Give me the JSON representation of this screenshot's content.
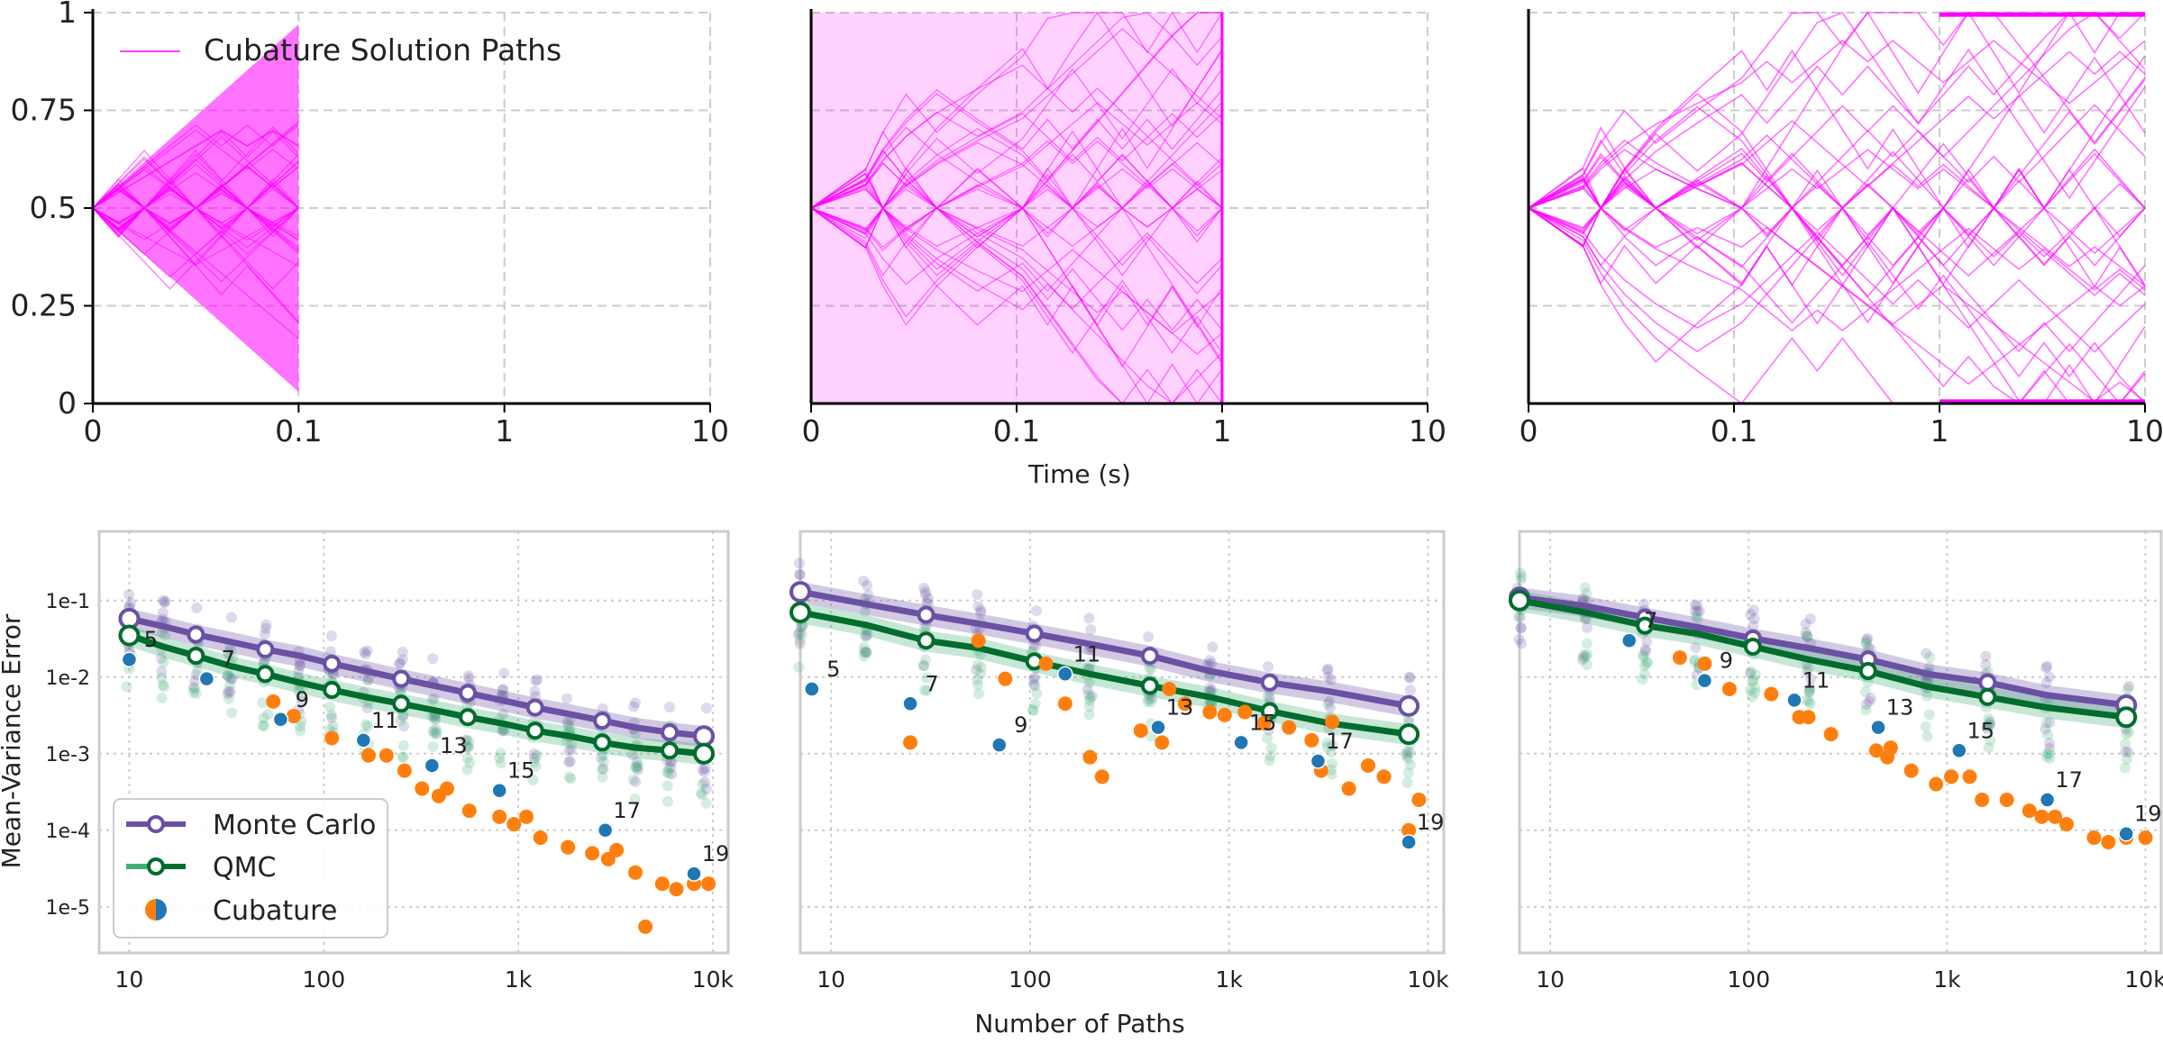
{
  "colors": {
    "paths": "#ff00ff",
    "monte_carlo": "#6a51a3",
    "qmc_light": "#41ae76",
    "qmc_dark": "#006d2c",
    "cubature_orange": "#ff7f0e",
    "cubature_blue": "#1f77b4",
    "grid": "#cccccc"
  },
  "figure": {
    "top_xlabel": "Time (s)",
    "bottom_xlabel": "Number of Paths",
    "bottom_ylabel": "Mean-Variance Error"
  },
  "chart_data": [
    {
      "type": "line",
      "panel": "top-left",
      "description_series": "Cubature Solution Paths",
      "legend_label": "Cubature Solution Paths",
      "legend_position": "top-left",
      "x_scale": "symlog",
      "xticks": [
        0,
        0.1,
        1,
        10
      ],
      "xtick_labels": [
        "0",
        "0.1",
        "1",
        "10"
      ],
      "yticks": [
        0,
        0.25,
        0.5,
        0.75,
        1
      ],
      "ytick_labels": [
        "0",
        "0.25",
        "0.5",
        "0.75",
        "1"
      ],
      "ylim": [
        0,
        1
      ],
      "x_end": 0.1,
      "start_value": 0.5,
      "spread": 0.48,
      "path_count": 40
    },
    {
      "type": "line",
      "panel": "top-middle",
      "x_scale": "symlog",
      "xticks": [
        0,
        0.1,
        1,
        10
      ],
      "xtick_labels": [
        "0",
        "0.1",
        "1",
        "10"
      ],
      "ylim": [
        0,
        1
      ],
      "x_end": 1,
      "start_value": 0.5,
      "path_count": 36,
      "xlabel": "Time (s)"
    },
    {
      "type": "line",
      "panel": "top-right",
      "x_scale": "symlog",
      "xticks": [
        0,
        0.1,
        1,
        10
      ],
      "xtick_labels": [
        "0",
        "0.1",
        "1",
        "10"
      ],
      "ylim": [
        0,
        1
      ],
      "x_end": 10,
      "start_value": 0.5,
      "path_count": 30
    },
    {
      "type": "line",
      "panel": "bottom-left",
      "x_scale": "log",
      "y_scale": "log",
      "xlim": [
        7,
        12000
      ],
      "ylim": [
        2.5e-06,
        0.8
      ],
      "xticks": [
        10,
        100,
        1000,
        10000
      ],
      "xtick_labels": [
        "10",
        "100",
        "1k",
        "10k"
      ],
      "yticks": [
        0.1,
        0.01,
        0.001,
        0.0001,
        1e-05
      ],
      "ytick_labels": [
        "1e-1",
        "1e-2",
        "1e-3",
        "1e-4",
        "1e-5"
      ],
      "legend": [
        "Monte Carlo",
        "QMC",
        "Cubature"
      ],
      "legend_position": "bottom-left",
      "x": [
        10,
        15,
        22,
        33,
        50,
        75,
        110,
        165,
        250,
        370,
        550,
        820,
        1220,
        1820,
        2700,
        4000,
        6000,
        9000
      ],
      "series": [
        {
          "name": "Monte Carlo",
          "values": [
            0.058,
            0.046,
            0.036,
            0.029,
            0.023,
            0.019,
            0.015,
            0.012,
            0.0095,
            0.0077,
            0.0062,
            0.005,
            0.004,
            0.0033,
            0.0027,
            0.0022,
            0.0019,
            0.0017
          ]
        },
        {
          "name": "QMC",
          "values": [
            0.035,
            0.025,
            0.019,
            0.014,
            0.011,
            0.0085,
            0.0068,
            0.0055,
            0.0045,
            0.0037,
            0.003,
            0.0025,
            0.002,
            0.0017,
            0.0014,
            0.0012,
            0.0011,
            0.001
          ]
        }
      ],
      "cubature": {
        "labels": [
          "5",
          "7",
          "9",
          "11",
          "13",
          "15",
          "17",
          "19"
        ],
        "blue_points": [
          [
            10,
            0.017
          ],
          [
            25,
            0.0095
          ],
          [
            60,
            0.0028
          ],
          [
            160,
            0.0015
          ],
          [
            360,
            0.0007
          ],
          [
            800,
            0.00033
          ],
          [
            2800,
            0.0001
          ],
          [
            8000,
            2.7e-05
          ]
        ],
        "orange_points": [
          [
            55,
            0.0048
          ],
          [
            70,
            0.0031
          ],
          [
            110,
            0.0016
          ],
          [
            170,
            0.00095
          ],
          [
            210,
            0.00095
          ],
          [
            260,
            0.0006
          ],
          [
            320,
            0.00035
          ],
          [
            390,
            0.00028
          ],
          [
            430,
            0.00035
          ],
          [
            560,
            0.00018
          ],
          [
            800,
            0.00015
          ],
          [
            950,
            0.00012
          ],
          [
            1100,
            0.00015
          ],
          [
            1300,
            8e-05
          ],
          [
            1800,
            6e-05
          ],
          [
            2400,
            5e-05
          ],
          [
            2900,
            4.2e-05
          ],
          [
            3200,
            5.5e-05
          ],
          [
            4000,
            2.8e-05
          ],
          [
            4500,
            5.5e-06
          ],
          [
            5500,
            2e-05
          ],
          [
            6500,
            1.7e-05
          ],
          [
            8000,
            2e-05
          ],
          [
            9500,
            2e-05
          ]
        ]
      }
    },
    {
      "type": "line",
      "panel": "bottom-middle",
      "x_scale": "log",
      "y_scale": "log",
      "xlim": [
        7,
        12000
      ],
      "ylim": [
        2.5e-06,
        0.8
      ],
      "xticks": [
        10,
        100,
        1000,
        10000
      ],
      "xtick_labels": [
        "10",
        "100",
        "1k",
        "10k"
      ],
      "x": [
        7,
        15,
        30,
        55,
        105,
        200,
        400,
        800,
        1600,
        3200,
        8000
      ],
      "series": [
        {
          "name": "Monte Carlo",
          "values": [
            0.13,
            0.09,
            0.065,
            0.05,
            0.037,
            0.027,
            0.019,
            0.012,
            0.0085,
            0.0065,
            0.0042
          ]
        },
        {
          "name": "QMC",
          "values": [
            0.07,
            0.048,
            0.03,
            0.024,
            0.016,
            0.011,
            0.0077,
            0.0055,
            0.0036,
            0.0025,
            0.0018
          ]
        }
      ],
      "cubature": {
        "labels": [
          "5",
          "7",
          "9",
          "11",
          "13",
          "15",
          "17",
          "19"
        ],
        "blue_points": [
          [
            8,
            0.007
          ],
          [
            25,
            0.0045
          ],
          [
            70,
            0.0013
          ],
          [
            150,
            0.011
          ],
          [
            440,
            0.0022
          ],
          [
            1150,
            0.0014
          ],
          [
            2800,
            0.0008
          ],
          [
            8000,
            7e-05
          ]
        ],
        "orange_points": [
          [
            25,
            0.0014
          ],
          [
            55,
            0.03
          ],
          [
            75,
            0.0095
          ],
          [
            120,
            0.015
          ],
          [
            150,
            0.0045
          ],
          [
            200,
            0.0009
          ],
          [
            230,
            0.0005
          ],
          [
            360,
            0.002
          ],
          [
            460,
            0.0014
          ],
          [
            500,
            0.007
          ],
          [
            600,
            0.0045
          ],
          [
            800,
            0.0035
          ],
          [
            950,
            0.0032
          ],
          [
            1200,
            0.0035
          ],
          [
            1500,
            0.0025
          ],
          [
            2000,
            0.0022
          ],
          [
            2600,
            0.0015
          ],
          [
            2900,
            0.0006
          ],
          [
            3300,
            0.0026
          ],
          [
            4000,
            0.00035
          ],
          [
            5000,
            0.0007
          ],
          [
            6000,
            0.0005
          ],
          [
            8000,
            0.0001
          ],
          [
            9000,
            0.00025
          ]
        ]
      }
    },
    {
      "type": "line",
      "panel": "bottom-right",
      "x_scale": "log",
      "y_scale": "log",
      "xlim": [
        7,
        12000
      ],
      "ylim": [
        2.5e-06,
        0.8
      ],
      "xticks": [
        10,
        100,
        1000,
        10000
      ],
      "xtick_labels": [
        "10",
        "100",
        "1k",
        "10k"
      ],
      "x": [
        7,
        15,
        30,
        55,
        105,
        200,
        400,
        800,
        1600,
        3200,
        8000
      ],
      "series": [
        {
          "name": "Monte Carlo",
          "values": [
            0.11,
            0.085,
            0.06,
            0.045,
            0.032,
            0.024,
            0.017,
            0.011,
            0.0085,
            0.0058,
            0.0043
          ]
        },
        {
          "name": "QMC",
          "values": [
            0.1,
            0.07,
            0.047,
            0.037,
            0.025,
            0.017,
            0.012,
            0.0075,
            0.0055,
            0.004,
            0.003
          ]
        }
      ],
      "cubature": {
        "labels": [
          "7",
          "9",
          "11",
          "13",
          "15",
          "17",
          "19"
        ],
        "blue_points": [
          [
            25,
            0.03
          ],
          [
            60,
            0.009
          ],
          [
            170,
            0.005
          ],
          [
            450,
            0.0022
          ],
          [
            1150,
            0.0011
          ],
          [
            3200,
            0.00025
          ],
          [
            8000,
            9e-05
          ]
        ],
        "orange_points": [
          [
            45,
            0.018
          ],
          [
            60,
            0.015
          ],
          [
            80,
            0.007
          ],
          [
            130,
            0.006
          ],
          [
            180,
            0.003
          ],
          [
            200,
            0.003
          ],
          [
            260,
            0.0018
          ],
          [
            440,
            0.0011
          ],
          [
            500,
            0.0009
          ],
          [
            520,
            0.0012
          ],
          [
            660,
            0.0006
          ],
          [
            880,
            0.0004
          ],
          [
            1050,
            0.0005
          ],
          [
            1300,
            0.0005
          ],
          [
            1500,
            0.00025
          ],
          [
            2000,
            0.00025
          ],
          [
            2600,
            0.00018
          ],
          [
            3000,
            0.00015
          ],
          [
            3500,
            0.00015
          ],
          [
            4000,
            0.00012
          ],
          [
            5500,
            8e-05
          ],
          [
            6500,
            7e-05
          ],
          [
            8000,
            8e-05
          ],
          [
            10000,
            8e-05
          ]
        ]
      }
    }
  ]
}
